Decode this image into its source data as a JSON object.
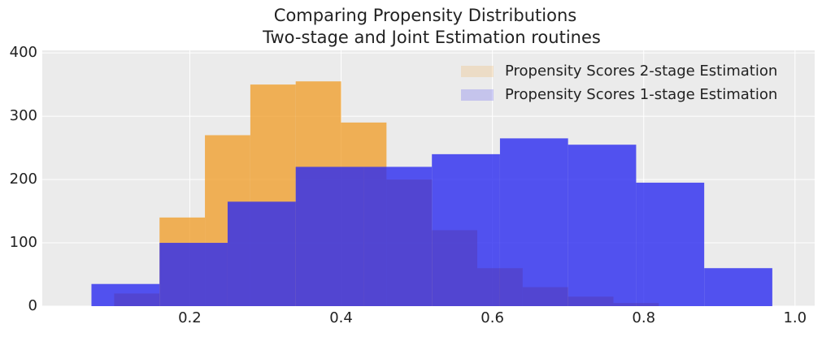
{
  "chart_data": {
    "type": "histogram",
    "title": "Comparing Propensity Distributions",
    "subtitle": "Two-stage and Joint Estimation routines",
    "series": [
      {
        "name": "Propensity Scores 2-stage Estimation",
        "color": "#f0a030",
        "bins": [
          0.1,
          0.16,
          0.22,
          0.28,
          0.34,
          0.4,
          0.46,
          0.52,
          0.58,
          0.64,
          0.7,
          0.76,
          0.82
        ],
        "values": [
          20,
          140,
          270,
          350,
          355,
          290,
          200,
          120,
          60,
          30,
          15,
          5
        ]
      },
      {
        "name": "Propensity Scores 1-stage Estimation",
        "color": "#2b2af0",
        "bins": [
          0.07,
          0.16,
          0.25,
          0.34,
          0.43,
          0.52,
          0.61,
          0.7,
          0.79,
          0.88,
          0.97
        ],
        "values": [
          35,
          100,
          165,
          220,
          220,
          240,
          265,
          255,
          195,
          60
        ]
      }
    ],
    "xlim": [
      0.005,
      1.026
    ],
    "xticks": [
      0.2,
      0.4,
      0.6,
      0.8,
      {
        "value": 1,
        "label": "1.0"
      }
    ],
    "ylim": [
      0,
      404
    ],
    "yticks": [
      0,
      100,
      200,
      300,
      400
    ],
    "grid": true,
    "legend": "upper right"
  }
}
